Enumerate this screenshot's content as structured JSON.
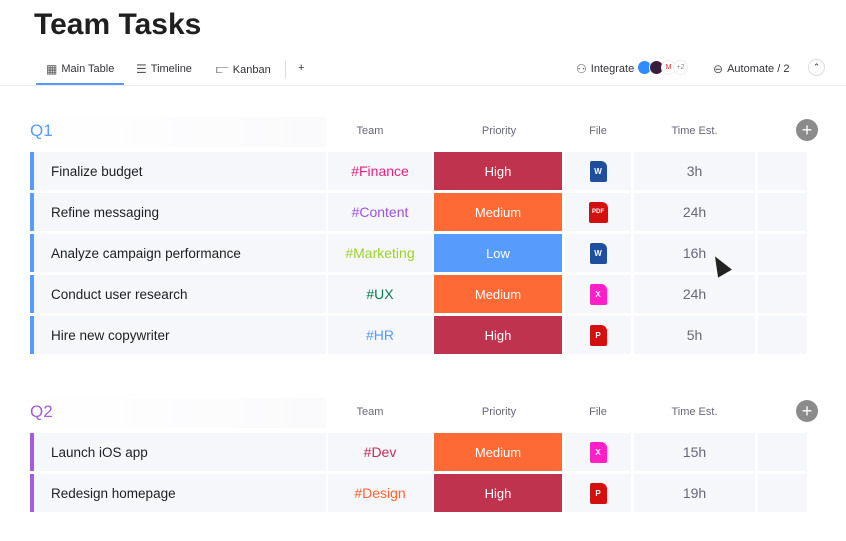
{
  "title": "Team Tasks",
  "tabs": [
    {
      "label": "Main Table",
      "icon": "table-icon"
    },
    {
      "label": "Timeline",
      "icon": "timeline-icon"
    },
    {
      "label": "Kanban",
      "icon": "kanban-icon"
    },
    {
      "label": "+"
    }
  ],
  "toolbar": {
    "integrate": "Integrate",
    "more_count": "+2",
    "automate": "Automate / 2"
  },
  "columns": {
    "team": "Team",
    "priority": "Priority",
    "file": "File",
    "time": "Time Est."
  },
  "colors": {
    "High": "#c0334f",
    "Medium": "#fd6a35",
    "Low": "#579bfc"
  },
  "groups": [
    {
      "name": "Q1",
      "color": "#579bfc",
      "rows": [
        {
          "task": "Finalize budget",
          "team": "#Finance",
          "team_color": "#e2237e",
          "priority": "High",
          "file": "W",
          "file_color": "#1f4e9c",
          "time": "3h"
        },
        {
          "task": "Refine messaging",
          "team": "#Content",
          "team_color": "#9d50dd",
          "priority": "Medium",
          "file": "PDF",
          "file_color": "#d40f0f",
          "time": "24h"
        },
        {
          "task": "Analyze campaign performance",
          "team": "#Marketing",
          "team_color": "#9cd326",
          "priority": "Low",
          "file": "W",
          "file_color": "#1f4e9c",
          "time": "16h"
        },
        {
          "task": "Conduct user research",
          "team": "#UX",
          "team_color": "#037f4c",
          "priority": "Medium",
          "file": "X",
          "file_color": "#ff1fc7",
          "time": "24h"
        },
        {
          "task": "Hire new copywriter",
          "team": "#HR",
          "team_color": "#579bfc",
          "priority": "High",
          "file": "P",
          "file_color": "#d40f0f",
          "time": "5h"
        }
      ]
    },
    {
      "name": "Q2",
      "color": "#a25ddc",
      "rows": [
        {
          "task": "Launch iOS app",
          "team": "#Dev",
          "team_color": "#bb3354",
          "priority": "Medium",
          "file": "X",
          "file_color": "#ff1fc7",
          "time": "15h"
        },
        {
          "task": "Redesign homepage",
          "team": "#Design",
          "team_color": "#ff642e",
          "priority": "High",
          "file": "P",
          "file_color": "#d40f0f",
          "time": "19h"
        }
      ]
    }
  ]
}
